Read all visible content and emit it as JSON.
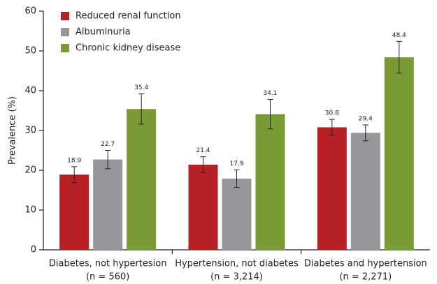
{
  "chart_data": {
    "type": "bar",
    "y_label": "Prevalence (%)",
    "categories": [
      [
        "Diabetes, not hypertesion",
        "(n = 560)"
      ],
      [
        "Hypertension, not diabetes",
        "(n = 3,214)"
      ],
      [
        "Diabetes and hypertension",
        "(n = 2,271)"
      ]
    ],
    "series": [
      {
        "name": "Reduced renal function",
        "color": "#b72025",
        "values": [
          18.9,
          21.4,
          30.8
        ],
        "errors": [
          2,
          2,
          2
        ]
      },
      {
        "name": "Albuminuria",
        "color": "#96979b",
        "values": [
          22.7,
          17.9,
          29.4
        ],
        "errors": [
          2.3,
          2.2,
          2
        ]
      },
      {
        "name": "Chronic kidney disease",
        "color": "#7a9a34",
        "values": [
          35.4,
          34.1,
          48.4
        ],
        "errors": [
          3.8,
          3.7,
          4
        ]
      }
    ],
    "ylim": [
      0,
      60
    ],
    "yticks": [
      0,
      10,
      20,
      30,
      40,
      50,
      60
    ],
    "legend": "upper left"
  }
}
